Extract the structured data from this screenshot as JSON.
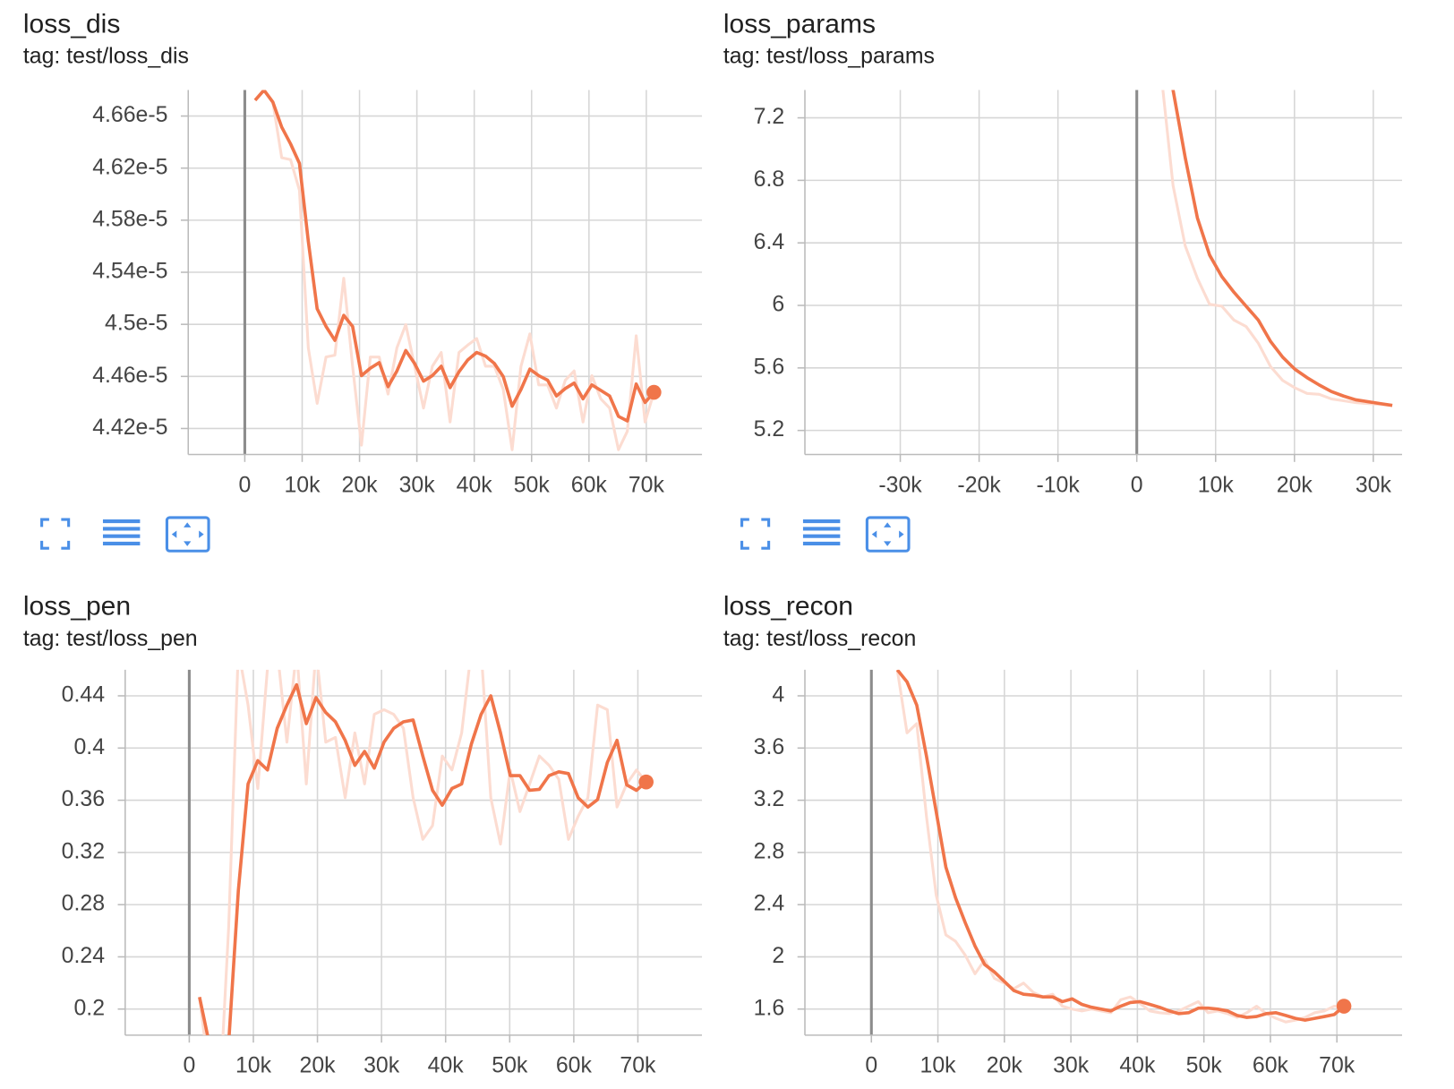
{
  "chart_data": [
    {
      "type": "line",
      "title": "loss_dis",
      "subtitle": "tag: test/loss_dis",
      "x": [
        1800,
        3345,
        4890,
        6435,
        7980,
        9525,
        11070,
        12615,
        14160,
        15705,
        17250,
        18795,
        20340,
        21885,
        23430,
        24975,
        26520,
        28065,
        29610,
        31155,
        32700,
        34245,
        35790,
        37335,
        38880,
        40425,
        41970,
        43515,
        45060,
        46605,
        48150,
        49695,
        51240,
        52785,
        54330,
        55875,
        57420,
        58965,
        60510,
        62055,
        63600,
        65145,
        66690,
        68235,
        69780,
        71325
      ],
      "series": [
        {
          "color": "#fcdcd1",
          "values": [
            4.6721e-05,
            4.6799e-05,
            4.6707e-05,
            4.628e-05,
            4.6265e-05,
            4.603e-05,
            4.482e-05,
            4.4393e-05,
            4.4749e-05,
            4.4763e-05,
            4.5354e-05,
            4.4678e-05,
            4.4072e-05,
            4.4749e-05,
            4.4749e-05,
            4.4464e-05,
            4.482e-05,
            4.4998e-05,
            4.4678e-05,
            4.4357e-05,
            4.4678e-05,
            4.4784e-05,
            4.425e-05,
            4.4784e-05,
            4.4841e-05,
            4.4891e-05,
            4.4678e-05,
            4.4678e-05,
            4.45e-05,
            4.4037e-05,
            4.4678e-05,
            4.4927e-05,
            4.4535e-05,
            4.4535e-05,
            4.4357e-05,
            4.4571e-05,
            4.4642e-05,
            4.425e-05,
            4.4606e-05,
            4.4428e-05,
            4.4357e-05,
            4.4037e-05,
            4.4179e-05,
            4.4912e-05,
            4.425e-05,
            4.4478e-05
          ]
        },
        {
          "color": "#f0754a",
          "values": [
            4.6721e-05,
            4.6799e-05,
            4.6707e-05,
            4.6515e-05,
            4.6386e-05,
            4.6237e-05,
            4.5639e-05,
            4.5119e-05,
            4.4984e-05,
            4.4877e-05,
            4.5069e-05,
            4.4984e-05,
            4.4606e-05,
            4.4663e-05,
            4.4706e-05,
            4.4521e-05,
            4.4642e-05,
            4.4799e-05,
            4.4699e-05,
            4.4564e-05,
            4.4606e-05,
            4.4678e-05,
            4.4514e-05,
            4.4635e-05,
            4.4727e-05,
            4.4784e-05,
            4.4756e-05,
            4.4699e-05,
            4.4599e-05,
            4.4371e-05,
            4.45e-05,
            4.4656e-05,
            4.4606e-05,
            4.4571e-05,
            4.445e-05,
            4.4507e-05,
            4.4549e-05,
            4.4428e-05,
            4.4535e-05,
            4.4493e-05,
            4.445e-05,
            4.4293e-05,
            4.4258e-05,
            4.4542e-05,
            4.44e-05,
            4.4478e-05
          ]
        }
      ],
      "xlim": [
        -9860,
        79700
      ],
      "ylim": [
        4.4e-05,
        4.68e-05
      ],
      "xticks": [
        0,
        {
          "value": 10000,
          "label": "10k"
        },
        {
          "value": 20000,
          "label": "20k"
        },
        {
          "value": 30000,
          "label": "30k"
        },
        {
          "value": 40000,
          "label": "40k"
        },
        {
          "value": 50000,
          "label": "50k"
        },
        {
          "value": 60000,
          "label": "60k"
        },
        {
          "value": 70000,
          "label": "70k"
        }
      ],
      "yticks": [
        {
          "value": 4.42e-05,
          "label": "4.42e-5"
        },
        {
          "value": 4.46e-05,
          "label": "4.46e-5"
        },
        {
          "value": 4.5e-05,
          "label": "4.5e-5"
        },
        {
          "value": 4.54e-05,
          "label": "4.54e-5"
        },
        {
          "value": 4.58e-05,
          "label": "4.58e-5"
        },
        {
          "value": 4.62e-05,
          "label": "4.62e-5"
        },
        {
          "value": 4.66e-05,
          "label": "4.66e-5"
        }
      ],
      "grid": true,
      "end_marker": true
    },
    {
      "type": "line",
      "title": "loss_params",
      "subtitle": "tag: test/loss_params",
      "x": [
        3055,
        4600,
        6145,
        7690,
        9235,
        10780,
        12325,
        13870,
        15415,
        16960,
        18505,
        20050,
        21595,
        23140,
        24685,
        26230,
        27775,
        29320,
        30865,
        32410
      ],
      "series": [
        {
          "color": "#fcdcd1",
          "values": [
            7.5,
            6.767,
            6.381,
            6.173,
            6.007,
            5.995,
            5.906,
            5.865,
            5.758,
            5.609,
            5.52,
            5.473,
            5.437,
            5.431,
            5.402,
            5.39,
            5.378,
            5.372,
            5.366,
            5.36
          ]
        },
        {
          "color": "#f0754a",
          "values": [
            7.7,
            7.378,
            6.945,
            6.559,
            6.322,
            6.185,
            6.084,
            5.995,
            5.906,
            5.77,
            5.669,
            5.592,
            5.538,
            5.491,
            5.449,
            5.42,
            5.396,
            5.384,
            5.372,
            5.36
          ]
        }
      ],
      "xlim": [
        -42100,
        33650
      ],
      "ylim": [
        5.046,
        7.378
      ],
      "xticks": [
        {
          "value": -30000,
          "label": "-30k"
        },
        {
          "value": -20000,
          "label": "-20k"
        },
        {
          "value": -10000,
          "label": "-10k"
        },
        0,
        {
          "value": 10000,
          "label": "10k"
        },
        {
          "value": 20000,
          "label": "20k"
        },
        {
          "value": 30000,
          "label": "30k"
        }
      ],
      "yticks": [
        5.2,
        5.6,
        6,
        6.4,
        6.8,
        7.2
      ],
      "grid": true,
      "end_marker": false
    },
    {
      "type": "line",
      "title": "loss_pen",
      "subtitle": "tag: test/loss_pen",
      "x": [
        1600,
        3115,
        4630,
        6145,
        7660,
        9175,
        10690,
        12205,
        13720,
        15235,
        16750,
        18265,
        19780,
        21295,
        22810,
        24325,
        25840,
        27355,
        28870,
        30385,
        31900,
        33415,
        34930,
        36445,
        37960,
        39475,
        40990,
        42505,
        44020,
        45535,
        47050,
        48565,
        50080,
        51595,
        53110,
        54625,
        56140,
        57655,
        59170,
        60685,
        62200,
        63715,
        65230,
        66745,
        68260,
        69775,
        71290
      ],
      "series": [
        {
          "color": "#fcdcd1",
          "values": [
            0.2092,
            0.1489,
            0.1205,
            0.2625,
            0.4755,
            0.4329,
            0.369,
            0.4613,
            0.4755,
            0.4045,
            0.4755,
            0.3725,
            0.4755,
            0.4045,
            0.4081,
            0.3619,
            0.4116,
            0.3725,
            0.4258,
            0.4294,
            0.4258,
            0.4151,
            0.3619,
            0.33,
            0.3406,
            0.3939,
            0.3832,
            0.4116,
            0.4755,
            0.4755,
            0.3619,
            0.3264,
            0.3832,
            0.3513,
            0.3725,
            0.3939,
            0.3868,
            0.3761,
            0.33,
            0.3477,
            0.3619,
            0.4329,
            0.4294,
            0.3548,
            0.3725,
            0.3832,
            0.374
          ]
        },
        {
          "color": "#f0754a",
          "values": [
            0.2092,
            0.1737,
            0.1489,
            0.1737,
            0.2909,
            0.3725,
            0.3903,
            0.3832,
            0.4151,
            0.4329,
            0.4485,
            0.4187,
            0.4386,
            0.4272,
            0.4201,
            0.4059,
            0.3867,
            0.3974,
            0.3846,
            0.4045,
            0.4151,
            0.4201,
            0.4215,
            0.3938,
            0.3676,
            0.3562,
            0.369,
            0.3725,
            0.4031,
            0.4258,
            0.44,
            0.4116,
            0.3789,
            0.3789,
            0.3676,
            0.3683,
            0.3789,
            0.3818,
            0.3804,
            0.3619,
            0.3548,
            0.3605,
            0.3889,
            0.4059,
            0.3718,
            0.3676,
            0.374
          ]
        }
      ],
      "xlim": [
        -10000,
        80000
      ],
      "ylim": [
        0.18,
        0.46
      ],
      "xticks": [
        0,
        {
          "value": 10000,
          "label": "10k"
        },
        {
          "value": 20000,
          "label": "20k"
        },
        {
          "value": 30000,
          "label": "30k"
        },
        {
          "value": 40000,
          "label": "40k"
        },
        {
          "value": 50000,
          "label": "50k"
        },
        {
          "value": 60000,
          "label": "60k"
        },
        {
          "value": 70000,
          "label": "70k"
        }
      ],
      "yticks": [
        0.2,
        0.24,
        0.28,
        0.32,
        0.36,
        0.4,
        0.44
      ],
      "grid": true,
      "end_marker": true
    },
    {
      "type": "line",
      "title": "loss_recon",
      "subtitle": "tag: test/loss_recon",
      "x": [
        3900,
        5360,
        6820,
        8280,
        9740,
        11200,
        12660,
        14120,
        15580,
        17040,
        18500,
        19960,
        21420,
        22880,
        24340,
        25800,
        27260,
        28720,
        30180,
        31640,
        33100,
        34560,
        36020,
        37480,
        38940,
        40400,
        41860,
        43320,
        44780,
        46240,
        47700,
        49160,
        50620,
        52080,
        53540,
        55000,
        56460,
        57920,
        59380,
        60840,
        62300,
        63760,
        65220,
        66680,
        68140,
        69600,
        71060
      ],
      "series": [
        {
          "color": "#fcdcd1",
          "values": [
            4.199,
            3.716,
            3.787,
            3.077,
            2.474,
            2.168,
            2.119,
            2.012,
            1.87,
            1.977,
            1.835,
            1.799,
            1.756,
            1.799,
            1.728,
            1.693,
            1.714,
            1.622,
            1.6,
            1.586,
            1.6,
            1.586,
            1.572,
            1.671,
            1.693,
            1.643,
            1.586,
            1.572,
            1.565,
            1.586,
            1.622,
            1.657,
            1.572,
            1.586,
            1.565,
            1.536,
            1.572,
            1.622,
            1.565,
            1.529,
            1.501,
            1.515,
            1.536,
            1.572,
            1.586,
            1.622,
            1.622
          ]
        },
        {
          "color": "#f0754a",
          "values": [
            4.199,
            4.107,
            3.929,
            3.539,
            3.113,
            2.687,
            2.452,
            2.261,
            2.083,
            1.941,
            1.884,
            1.813,
            1.742,
            1.714,
            1.707,
            1.693,
            1.693,
            1.657,
            1.678,
            1.636,
            1.614,
            1.6,
            1.586,
            1.622,
            1.65,
            1.657,
            1.636,
            1.614,
            1.586,
            1.565,
            1.572,
            1.607,
            1.607,
            1.6,
            1.586,
            1.551,
            1.536,
            1.543,
            1.565,
            1.572,
            1.551,
            1.529,
            1.515,
            1.529,
            1.543,
            1.558,
            1.622
          ]
        }
      ],
      "xlim": [
        -10000,
        79800
      ],
      "ylim": [
        1.4,
        4.2
      ],
      "xticks": [
        0,
        {
          "value": 10000,
          "label": "10k"
        },
        {
          "value": 20000,
          "label": "20k"
        },
        {
          "value": 30000,
          "label": "30k"
        },
        {
          "value": 40000,
          "label": "40k"
        },
        {
          "value": 50000,
          "label": "50k"
        },
        {
          "value": 60000,
          "label": "60k"
        },
        {
          "value": 70000,
          "label": "70k"
        }
      ],
      "yticks": [
        1.6,
        2,
        2.4,
        2.8,
        3.2,
        3.6,
        4
      ],
      "grid": true,
      "end_marker": true
    }
  ]
}
